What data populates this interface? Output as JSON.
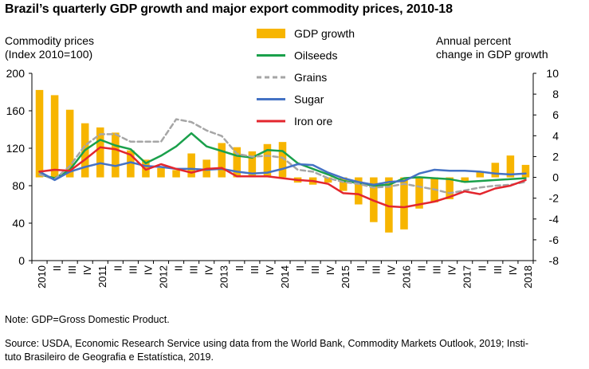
{
  "chart_data": {
    "type": "bar+line",
    "title": "Brazil’s quarterly GDP growth and major export commodity prices, 2010-18",
    "left_axis": {
      "title_lines": [
        "Commodity prices",
        "(Index 2010=100)"
      ],
      "range": [
        0,
        200
      ],
      "ticks": [
        0,
        40,
        80,
        120,
        160,
        200
      ]
    },
    "right_axis": {
      "title_lines": [
        "Annual percent",
        "change in GDP growth"
      ],
      "range": [
        -8,
        10
      ],
      "ticks": [
        -8,
        -6,
        -4,
        -2,
        0,
        2,
        4,
        6,
        8,
        10
      ]
    },
    "categories": [
      "2010",
      "II",
      "III",
      "IV",
      "2011",
      "II",
      "III",
      "IV",
      "2012",
      "II",
      "III",
      "IV",
      "2013",
      "II",
      "III",
      "IV",
      "2014",
      "II",
      "III",
      "IV",
      "2015",
      "II",
      "III",
      "IV",
      "2016",
      "II",
      "III",
      "IV",
      "2017",
      "II",
      "III",
      "IV",
      "2018"
    ],
    "bars": {
      "name": "GDP growth",
      "axis": "right",
      "color": "#F7B500",
      "values": [
        8.4,
        7.9,
        6.5,
        5.2,
        4.8,
        4.3,
        2.6,
        1.7,
        0.9,
        0.7,
        2.3,
        1.7,
        3.3,
        2.9,
        2.5,
        3.2,
        3.4,
        -0.5,
        -0.7,
        -0.5,
        -1.3,
        -2.6,
        -4.3,
        -5.3,
        -5.0,
        -3.0,
        -2.4,
        -2.1,
        -0.5,
        0.6,
        1.4,
        2.1,
        1.2
      ]
    },
    "series": [
      {
        "name": "Oilseeds",
        "color": "#1AA04B",
        "axis": "left",
        "values": [
          92,
          88,
          97,
          118,
          129,
          123,
          119,
          104,
          112,
          122,
          136,
          122,
          117,
          112,
          110,
          118,
          117,
          104,
          98,
          92,
          85,
          83,
          80,
          81,
          88,
          89,
          88,
          87,
          84,
          85,
          86,
          87,
          88
        ]
      },
      {
        "name": "Grains",
        "color": "#A6A6A6",
        "dashed": true,
        "axis": "left",
        "values": [
          92,
          87,
          101,
          123,
          135,
          135,
          127,
          127,
          127,
          151,
          148,
          139,
          133,
          114,
          111,
          112,
          110,
          97,
          95,
          88,
          84,
          82,
          78,
          79,
          82,
          79,
          76,
          72,
          75,
          78,
          80,
          81,
          84
        ]
      },
      {
        "name": "Sugar",
        "color": "#4472C4",
        "axis": "left",
        "values": [
          95,
          86,
          95,
          100,
          104,
          101,
          105,
          101,
          100,
          98,
          98,
          97,
          98,
          95,
          93,
          94,
          98,
          103,
          102,
          94,
          88,
          84,
          81,
          84,
          85,
          93,
          97,
          96,
          96,
          95,
          93,
          92,
          93
        ]
      },
      {
        "name": "Iron ore",
        "color": "#E3262E",
        "axis": "left",
        "values": [
          95,
          97,
          96,
          108,
          121,
          119,
          113,
          97,
          103,
          98,
          94,
          98,
          99,
          90,
          90,
          90,
          88,
          86,
          85,
          82,
          72,
          71,
          64,
          58,
          57,
          60,
          63,
          68,
          74,
          71,
          77,
          80,
          86
        ]
      }
    ],
    "legend_position": "top-center"
  },
  "notes": {
    "note": "Note: GDP=Gross Domestic Product.",
    "source_line1": "Source: USDA, Economic Research Service using data from the World Bank, Commodity Markets Outlook, 2019; Insti-",
    "source_line2": "tuto Brasileiro de Geografia e Estatística, 2019."
  }
}
